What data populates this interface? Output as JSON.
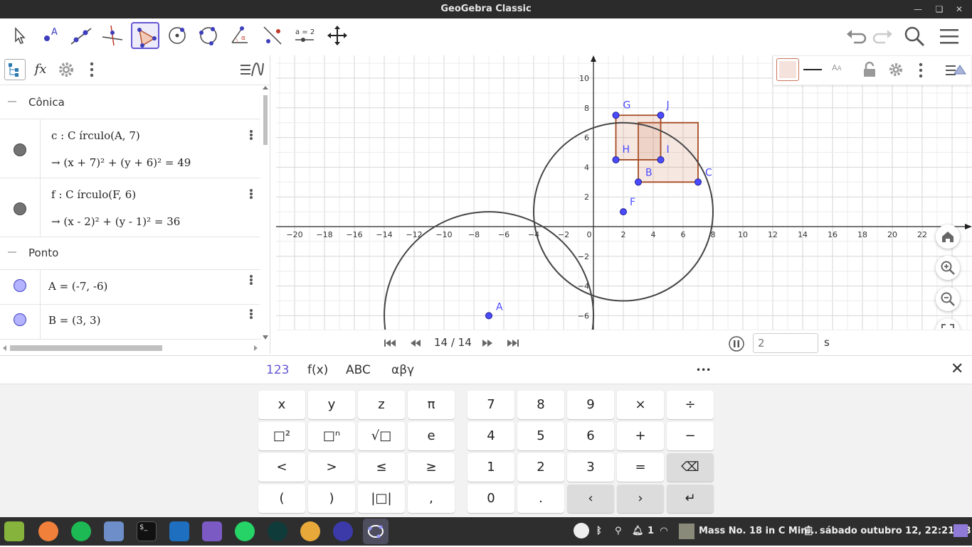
{
  "window": {
    "title": "GeoGebra Classic"
  },
  "toolbar": {
    "tools": [
      "Mover",
      "Ponto",
      "Reta",
      "Perpendicular",
      "Polígono",
      "Círculo dados Centro e Um de seus Pontos",
      "Círculo definido por Três Pontos",
      "Ângulo",
      "Reflexão em Relação a uma Reta",
      "Controle Deslizante",
      "Mover Janela de Visualização"
    ],
    "slider_label": "a = 2"
  },
  "algebra": {
    "groups": [
      {
        "name": "Cônica"
      },
      {
        "name": "Ponto"
      }
    ],
    "rows": [
      {
        "def": "c : C írculo(A, 7)",
        "value": "→  (x + 7)² + (y + 6)² = 49",
        "color": "#737373"
      },
      {
        "def": "f : C írculo(F, 6)",
        "value": "→  (x - 2)² + (y - 1)² = 36",
        "color": "#737373"
      },
      {
        "def": "A = (-7, -6)",
        "color": "#b3b3ff"
      },
      {
        "def": "B = (3, 3)",
        "color": "#b3b3ff"
      }
    ]
  },
  "graphics": {
    "x_ticks": [
      "−20",
      "−18",
      "−16",
      "−14",
      "−12",
      "−10",
      "−8",
      "−6",
      "−4",
      "−2",
      "0",
      "2",
      "4",
      "6",
      "8",
      "10",
      "12",
      "14",
      "16",
      "18",
      "20",
      "22"
    ],
    "y_ticks_pos": [
      "2",
      "4",
      "6",
      "8",
      "10"
    ],
    "y_ticks_neg": [
      "−2",
      "−4",
      "−6"
    ],
    "points": [
      {
        "label": "A",
        "x": -7,
        "y": -6
      },
      {
        "label": "B",
        "x": 3,
        "y": 3
      },
      {
        "label": "C",
        "x": 7,
        "y": 3
      },
      {
        "label": "F",
        "x": 2,
        "y": 1
      },
      {
        "label": "G",
        "x": 1.5,
        "y": 7.5
      },
      {
        "label": "H",
        "x": 1.5,
        "y": 4.5
      },
      {
        "label": "I",
        "x": 4.5,
        "y": 4.5
      },
      {
        "label": "J",
        "x": 4.5,
        "y": 7.5
      }
    ],
    "circles": [
      {
        "center": [
          -7,
          -6
        ],
        "radius": 7
      },
      {
        "center": [
          2,
          1
        ],
        "radius": 6
      }
    ],
    "squares": [
      [
        [
          3,
          3
        ],
        [
          7,
          3
        ],
        [
          7,
          7
        ],
        [
          3,
          7
        ]
      ],
      [
        [
          1.5,
          4.5
        ],
        [
          4.5,
          4.5
        ],
        [
          4.5,
          7.5
        ],
        [
          1.5,
          7.5
        ]
      ]
    ]
  },
  "player": {
    "step": "14 / 14",
    "speed_value": "2",
    "unit": "s"
  },
  "keyboard": {
    "tabs": [
      "123",
      "f(x)",
      "ABC",
      "αβγ",
      "•••"
    ],
    "left_rows": [
      [
        "x",
        "y",
        "z",
        "π"
      ],
      [
        "□²",
        "□ⁿ",
        "√□",
        "e"
      ],
      [
        "<",
        ">",
        "≤",
        "≥"
      ],
      [
        "(",
        ")",
        "|□|",
        ","
      ]
    ],
    "right_rows": [
      [
        "7",
        "8",
        "9",
        "×",
        "÷"
      ],
      [
        "4",
        "5",
        "6",
        "+",
        "−"
      ],
      [
        "1",
        "2",
        "3",
        "=",
        "⌫"
      ],
      [
        "0",
        ".",
        "‹",
        "›",
        "↵"
      ]
    ]
  },
  "taskbar": {
    "media": "Mass No. 18 in C Min...",
    "badge": "1",
    "clock": "sábado outubro 12, 22:21:38",
    "apps": [
      "Linux Mint Menu",
      "Firefox",
      "Spotify",
      "Mail",
      "Terminal",
      "VS Code",
      "Files",
      "WhatsApp",
      "GitKraken",
      "Chrome",
      "Equalizer",
      "GeoGebra"
    ]
  }
}
